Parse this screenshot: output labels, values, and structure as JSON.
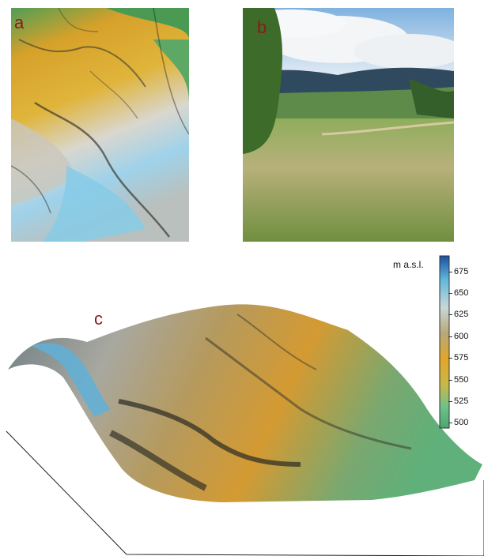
{
  "panels": {
    "a": {
      "letter": "a"
    },
    "b": {
      "letter": "b"
    },
    "c": {
      "letter": "c"
    }
  },
  "legend": {
    "title": "m a.s.l.",
    "ticks": [
      "675",
      "650",
      "625",
      "600",
      "575",
      "550",
      "525",
      "500"
    ],
    "colors": [
      "#1b4fa0",
      "#62b8dc",
      "#c8d8d8",
      "#b8a878",
      "#e2a628",
      "#c8b848",
      "#6cc28a",
      "#4aa86e"
    ]
  }
}
